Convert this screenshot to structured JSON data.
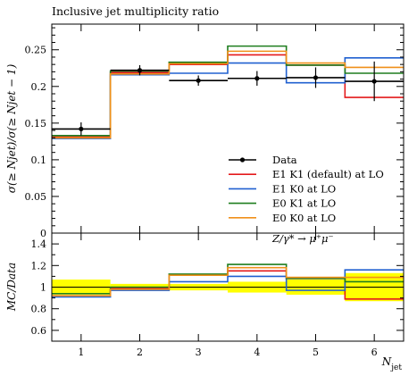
{
  "chart_data": [
    {
      "type": "line",
      "step": true,
      "title": "Inclusive jet multiplicity ratio",
      "ylabel": "σ(≥ Njet)/σ(≥ Njet − 1)",
      "ylim": [
        0,
        0.285
      ],
      "categories": [
        "1",
        "2",
        "3",
        "4",
        "5",
        "6"
      ],
      "yticks": [
        {
          "value": 0,
          "label": "0"
        },
        {
          "value": 0.05,
          "label": "0.05"
        },
        {
          "value": 0.1,
          "label": "0.1"
        },
        {
          "value": 0.15,
          "label": "0.15"
        },
        {
          "value": 0.2,
          "label": "0.2"
        },
        {
          "value": 0.25,
          "label": "0.25"
        }
      ],
      "data_series": {
        "name": "Data",
        "color": "#000000",
        "values": [
          0.142,
          0.222,
          0.208,
          0.211,
          0.212,
          0.207
        ],
        "errors": [
          0.009,
          0.007,
          0.007,
          0.01,
          0.014,
          0.027
        ]
      },
      "series": [
        {
          "name": "E1 K1 (default) at LO",
          "color": "#e41a1c",
          "values": [
            0.131,
            0.219,
            0.23,
            0.243,
            0.229,
            0.185
          ]
        },
        {
          "name": "E1 K0 at LO",
          "color": "#2060d0",
          "values": [
            0.129,
            0.216,
            0.218,
            0.232,
            0.205,
            0.239
          ]
        },
        {
          "name": "E0 K1 at LO",
          "color": "#1e7d1e",
          "values": [
            0.133,
            0.221,
            0.233,
            0.255,
            0.229,
            0.218
          ]
        },
        {
          "name": "E0 K0 at LO",
          "color": "#f0901a",
          "values": [
            0.13,
            0.217,
            0.231,
            0.248,
            0.232,
            0.226
          ]
        }
      ],
      "process_label": "Z/γ* → μ⁺μ⁻",
      "legend_position": "center-right"
    },
    {
      "type": "line",
      "step": true,
      "ylabel": "MC/Data",
      "xlabel": "Njet",
      "ylim": [
        0.5,
        1.5
      ],
      "yticks": [
        {
          "value": 0.6,
          "label": "0.6"
        },
        {
          "value": 0.8,
          "label": "0.8"
        },
        {
          "value": 1.0,
          "label": "1"
        },
        {
          "value": 1.2,
          "label": "1.2"
        },
        {
          "value": 1.4,
          "label": "1.4"
        }
      ],
      "band": {
        "color": "#ffff00",
        "low": [
          0.93,
          0.97,
          0.97,
          0.95,
          0.93,
          0.87
        ],
        "high": [
          1.07,
          1.03,
          1.03,
          1.05,
          1.07,
          1.13
        ]
      },
      "series": [
        {
          "name": "E1 K1 (default) at LO",
          "color": "#e41a1c",
          "values": [
            0.92,
            0.99,
            1.11,
            1.15,
            1.08,
            0.89
          ]
        },
        {
          "name": "E1 K0 at LO",
          "color": "#2060d0",
          "values": [
            0.91,
            0.97,
            1.05,
            1.1,
            0.97,
            1.16
          ]
        },
        {
          "name": "E0 K1 at LO",
          "color": "#1e7d1e",
          "values": [
            0.94,
            1.0,
            1.12,
            1.21,
            1.08,
            1.05
          ]
        },
        {
          "name": "E0 K0 at LO",
          "color": "#f0901a",
          "values": [
            0.92,
            0.98,
            1.11,
            1.18,
            1.09,
            1.09
          ]
        }
      ]
    }
  ]
}
